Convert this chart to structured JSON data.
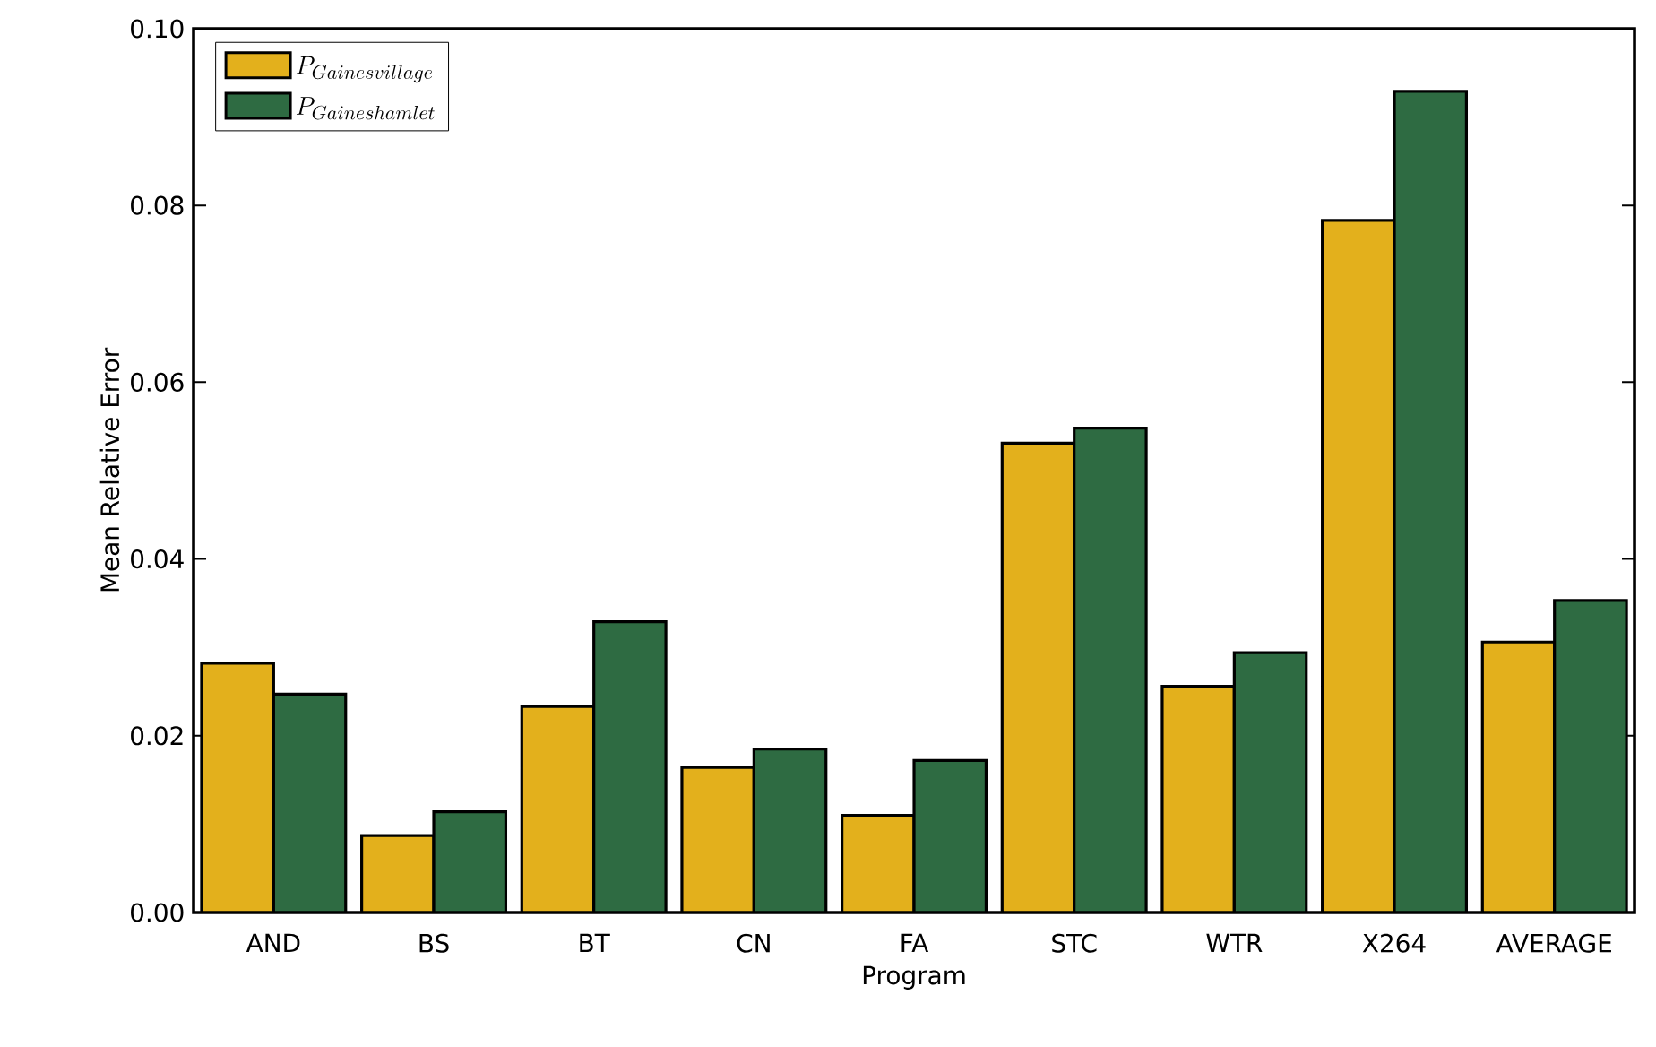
{
  "chart_data": {
    "type": "bar",
    "xlabel": "Program",
    "ylabel": "Mean Relative Error",
    "categories": [
      "AND",
      "BS",
      "BT",
      "CN",
      "FA",
      "STC",
      "WTR",
      "X264",
      "AVERAGE"
    ],
    "series": [
      {
        "name": "P_{Gainesvillage}",
        "color": "#e3b01c",
        "values": [
          0.0282,
          0.0087,
          0.0233,
          0.0164,
          0.011,
          0.0531,
          0.0256,
          0.0783,
          0.0306
        ]
      },
      {
        "name": "P_{Gaineshamlet}",
        "color": "#2e6b42",
        "values": [
          0.0247,
          0.0114,
          0.0329,
          0.0185,
          0.0172,
          0.0548,
          0.0294,
          0.0929,
          0.0353
        ]
      }
    ],
    "ylim": [
      0,
      0.1
    ],
    "yticks": [
      {
        "value": 0,
        "label": "0.00"
      },
      {
        "value": 0.02,
        "label": "0.02"
      },
      {
        "value": 0.04,
        "label": "0.04"
      },
      {
        "value": 0.06,
        "label": "0.06"
      },
      {
        "value": 0.08,
        "label": "0.08"
      },
      {
        "value": 0.1,
        "label": "0.10"
      }
    ],
    "grid": false,
    "legend": "top left"
  }
}
